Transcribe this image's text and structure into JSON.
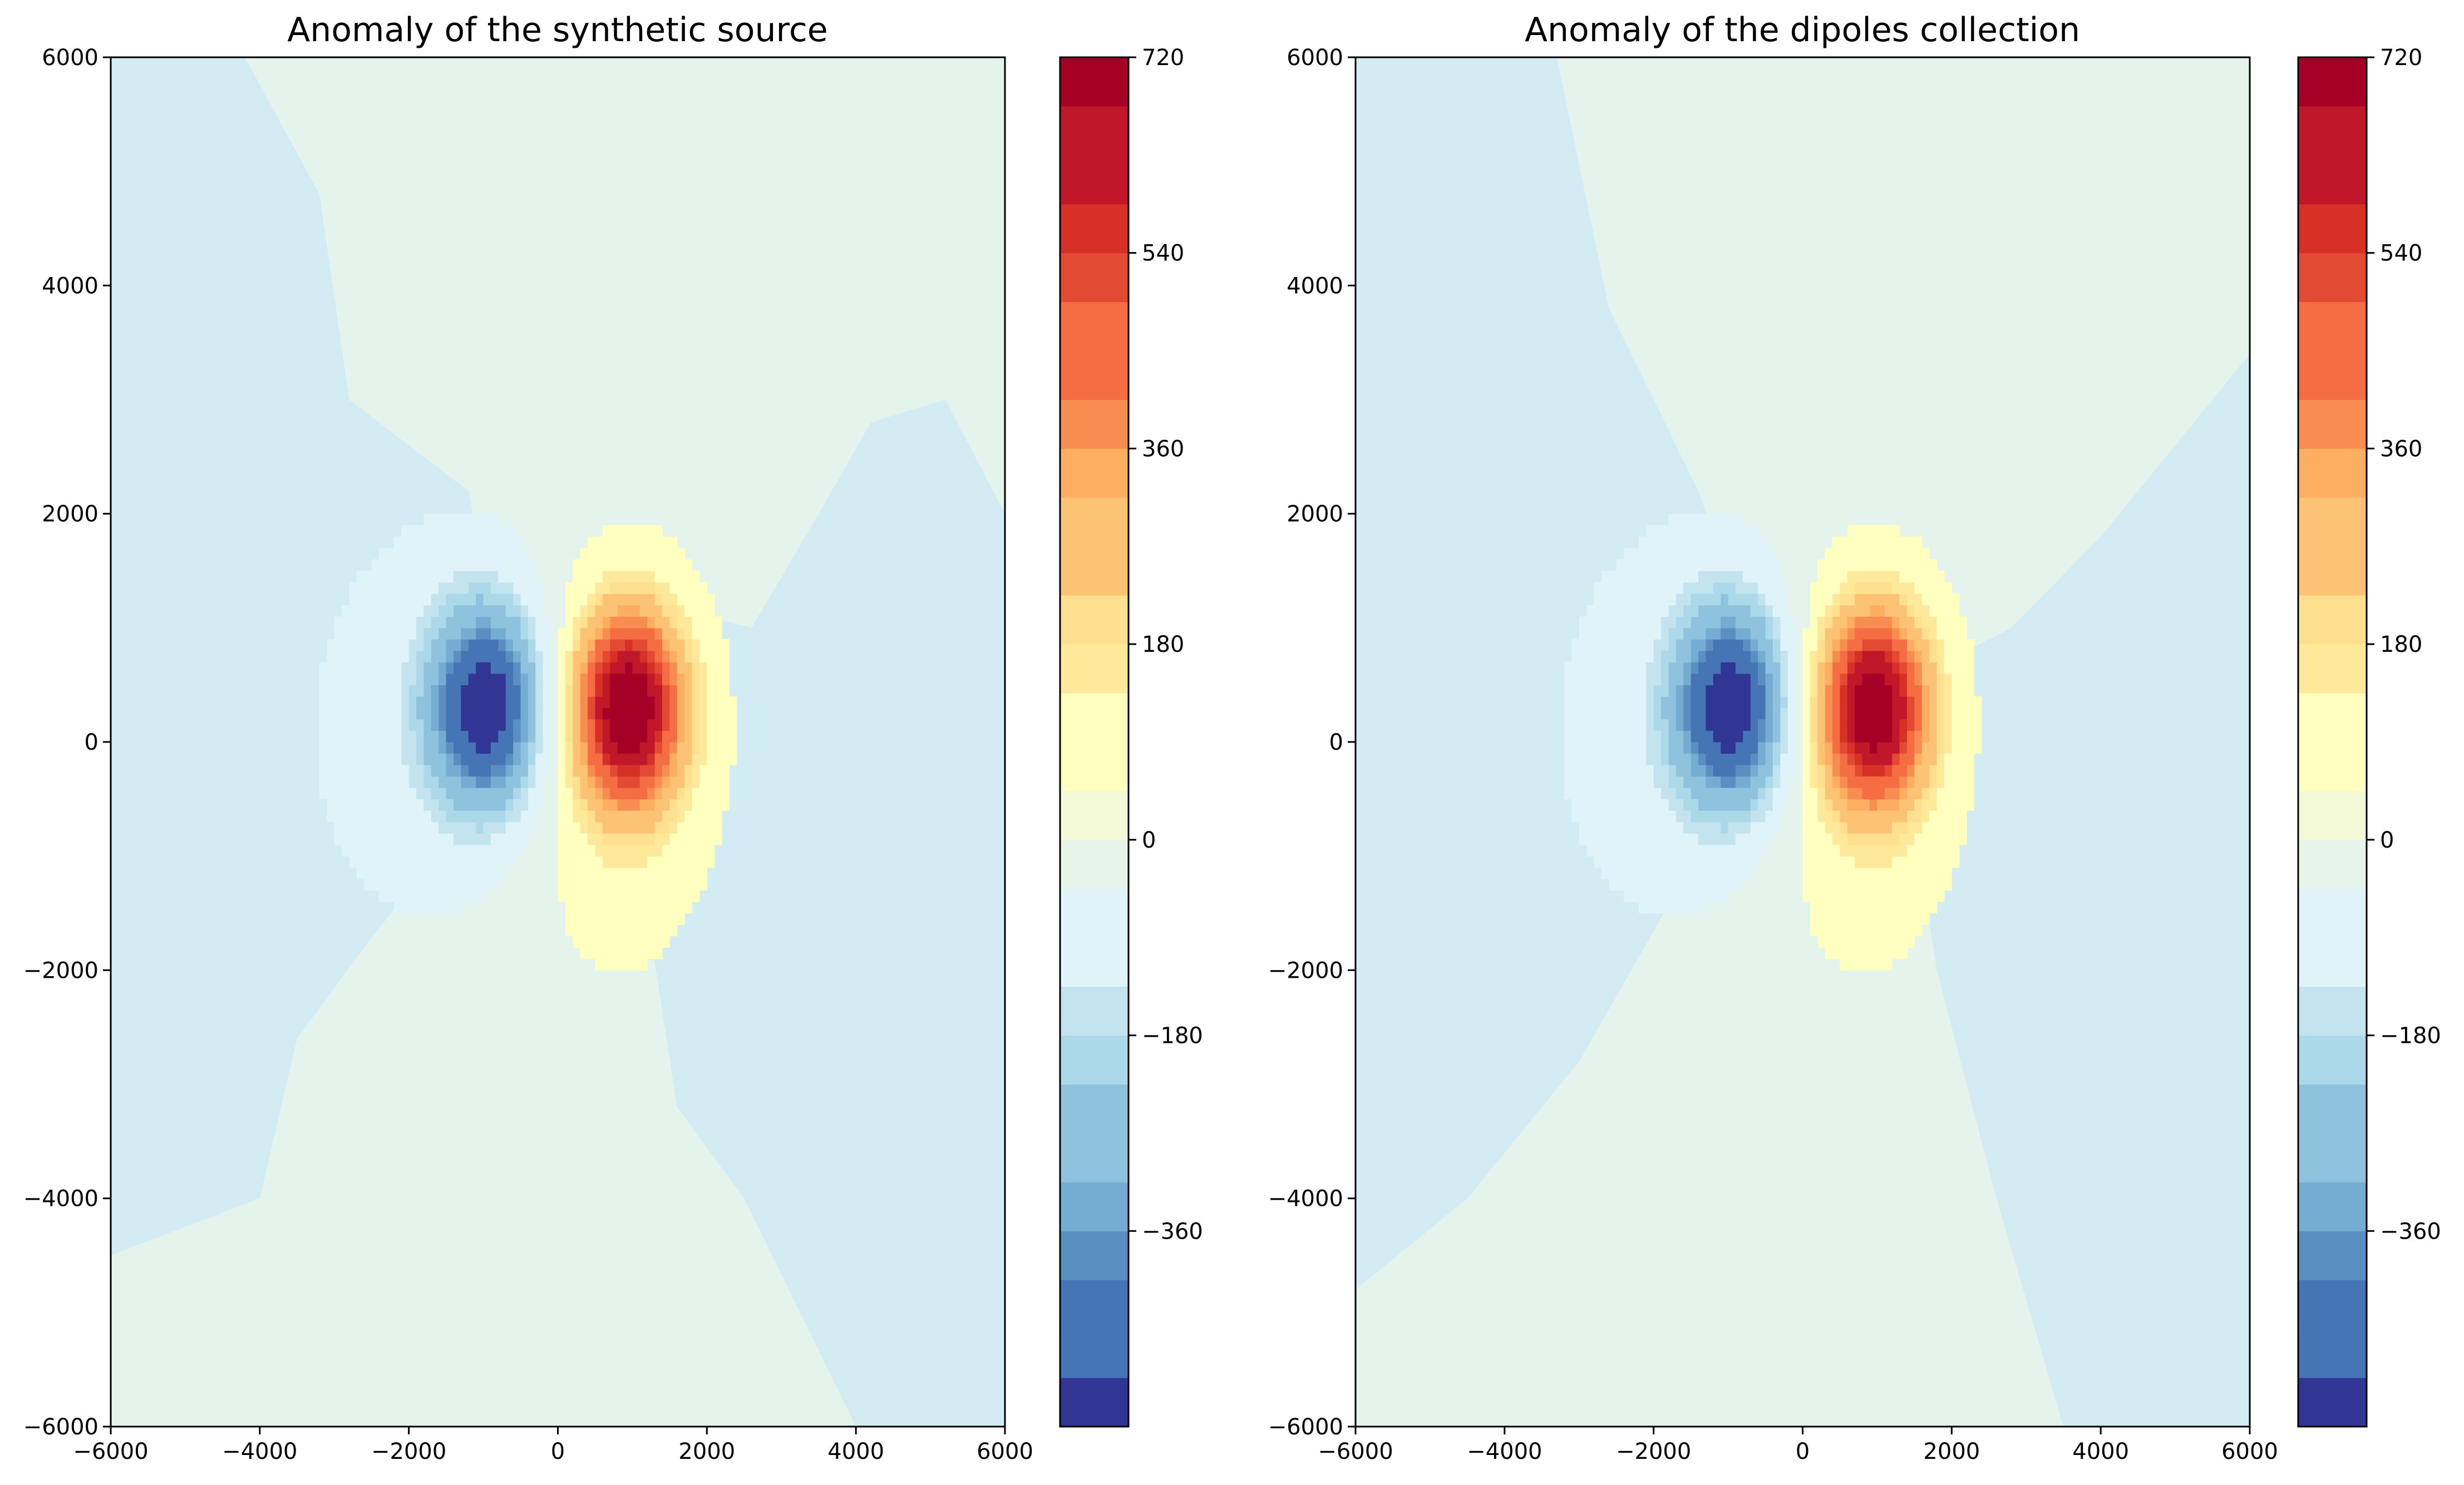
{
  "chart_data": [
    {
      "type": "contourf",
      "title": "Anomaly of the synthetic source",
      "xlabel": "",
      "ylabel": "",
      "xlim": [
        -6000,
        6000
      ],
      "ylim": [
        -6000,
        6000
      ],
      "x_ticks": [
        "−6000",
        "−4000",
        "−2000",
        "0",
        "2000",
        "4000",
        "6000"
      ],
      "y_ticks": [
        "6000",
        "4000",
        "2000",
        "0",
        "−2000",
        "−4000",
        "−6000"
      ],
      "colormap": "RdYlBu_r",
      "levels": [
        -540,
        -495,
        -450,
        -405,
        -360,
        -315,
        -270,
        -225,
        -180,
        -135,
        -90,
        -45,
        0,
        45,
        90,
        135,
        180,
        225,
        270,
        315,
        360,
        405,
        450,
        495,
        540,
        585,
        630,
        675,
        720
      ],
      "colorbar_ticks": [
        "720",
        "540",
        "360",
        "180",
        "0",
        "−180",
        "−360"
      ],
      "dipole": {
        "positive_peak": {
          "x": 950,
          "y": 300,
          "value": 720
        },
        "negative_peak": {
          "x": -950,
          "y": 300,
          "value": -540
        }
      },
      "background": {
        "north_east": 0,
        "west": -45,
        "south": 0
      }
    },
    {
      "type": "contourf",
      "title": "Anomaly of the dipoles collection",
      "xlabel": "",
      "ylabel": "",
      "xlim": [
        -6000,
        6000
      ],
      "ylim": [
        -6000,
        6000
      ],
      "x_ticks": [
        "−6000",
        "−4000",
        "−2000",
        "0",
        "2000",
        "4000",
        "6000"
      ],
      "y_ticks": [
        "6000",
        "4000",
        "2000",
        "0",
        "−2000",
        "−4000",
        "−6000"
      ],
      "colormap": "RdYlBu_r",
      "levels": [
        -540,
        -495,
        -450,
        -405,
        -360,
        -315,
        -270,
        -225,
        -180,
        -135,
        -90,
        -45,
        0,
        45,
        90,
        135,
        180,
        225,
        270,
        315,
        360,
        405,
        450,
        495,
        540,
        585,
        630,
        675,
        720
      ],
      "colorbar_ticks": [
        "720",
        "540",
        "360",
        "180",
        "0",
        "−180",
        "−360"
      ],
      "dipole": {
        "positive_peak": {
          "x": 950,
          "y": 300,
          "value": 700
        },
        "negative_peak": {
          "x": -950,
          "y": 300,
          "value": -540
        }
      },
      "background": {
        "north_east": 0,
        "west": -45,
        "south": 0
      }
    }
  ],
  "colors": {
    "bands": [
      "#313695",
      "#4575b4",
      "#5a8fc2",
      "#74add1",
      "#8fc3dd",
      "#abd9e9",
      "#c3e3ef",
      "#e0f3f8",
      "#e6f4ea",
      "#f3f9d6",
      "#ffffbf",
      "#fee99a",
      "#fee090",
      "#fdc374",
      "#fdae61",
      "#f88d52",
      "#f46d43",
      "#e34a33",
      "#d73027",
      "#c0182a",
      "#a50026"
    ],
    "neutral_plus": "#e4f3eb",
    "neutral_minus": "#d3ebf3"
  }
}
